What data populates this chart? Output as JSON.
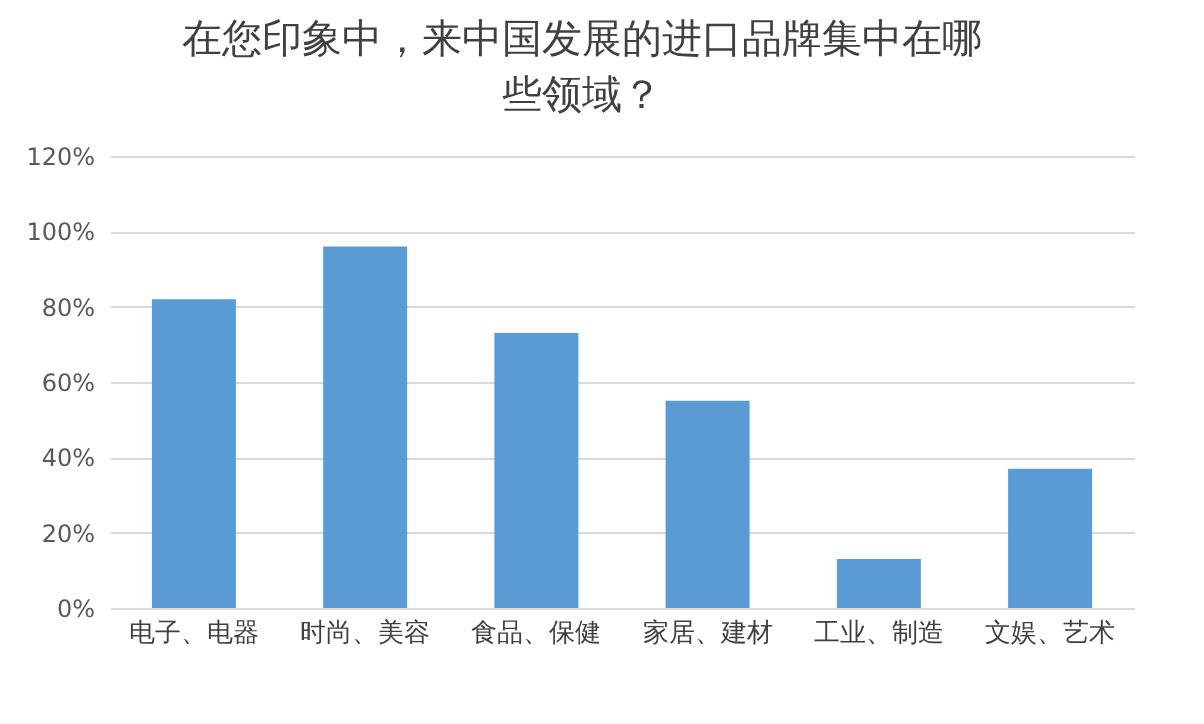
{
  "chart_data": {
    "type": "bar",
    "title": "在您印象中，来中国发展的进口品牌集中在哪些领域？",
    "categories": [
      "电子、电器",
      "时尚、美容",
      "食品、保健",
      "家居、建材",
      "工业、制造",
      "文娱、艺术"
    ],
    "values": [
      82,
      96,
      73,
      55,
      13,
      37
    ],
    "color": "#5b9bd5",
    "ylim": [
      0,
      120
    ],
    "yticks": [
      {
        "value": 0,
        "label": "0%"
      },
      {
        "value": 20,
        "label": "20%"
      },
      {
        "value": 40,
        "label": "40%"
      },
      {
        "value": 60,
        "label": "60%"
      },
      {
        "value": 80,
        "label": "80%"
      },
      {
        "value": 100,
        "label": "100%"
      },
      {
        "value": 120,
        "label": "120%"
      }
    ],
    "grid": "y"
  }
}
